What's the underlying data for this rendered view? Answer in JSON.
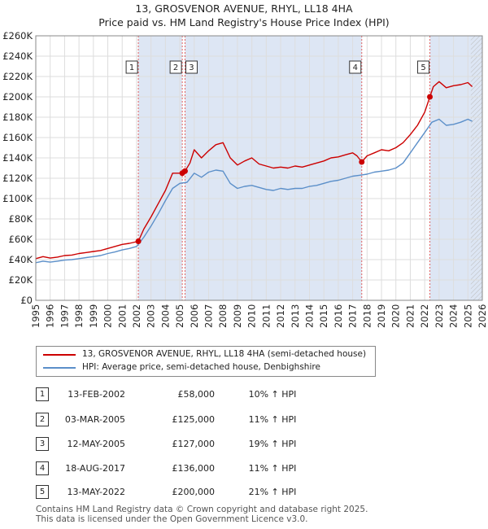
{
  "chart_data": {
    "type": "line",
    "title": "13, GROSVENOR AVENUE, RHYL, LL18 4HA",
    "subtitle": "Price paid vs. HM Land Registry's House Price Index (HPI)",
    "xlabel": "",
    "ylabel": "",
    "xlim": [
      1995,
      2026
    ],
    "ylim": [
      0,
      260000
    ],
    "x_ticks": [
      "1995",
      "1996",
      "1997",
      "1998",
      "1999",
      "2000",
      "2001",
      "2002",
      "2003",
      "2004",
      "2005",
      "2006",
      "2007",
      "2008",
      "2009",
      "2010",
      "2011",
      "2012",
      "2013",
      "2014",
      "2015",
      "2016",
      "2017",
      "2018",
      "2019",
      "2020",
      "2021",
      "2022",
      "2023",
      "2024",
      "2025",
      "2026"
    ],
    "y_ticks": [
      {
        "value": 0,
        "label": "£0"
      },
      {
        "value": 20000,
        "label": "£20K"
      },
      {
        "value": 40000,
        "label": "£40K"
      },
      {
        "value": 60000,
        "label": "£60K"
      },
      {
        "value": 80000,
        "label": "£80K"
      },
      {
        "value": 100000,
        "label": "£100K"
      },
      {
        "value": 120000,
        "label": "£120K"
      },
      {
        "value": 140000,
        "label": "£140K"
      },
      {
        "value": 160000,
        "label": "£160K"
      },
      {
        "value": 180000,
        "label": "£180K"
      },
      {
        "value": 200000,
        "label": "£200K"
      },
      {
        "value": 220000,
        "label": "£220K"
      },
      {
        "value": 240000,
        "label": "£240K"
      },
      {
        "value": 260000,
        "label": "£260K"
      }
    ],
    "grid": true,
    "forecast_start": 2025.2,
    "colors": {
      "property": "#cc0000",
      "hpi": "#5b8fc9",
      "shade": "#dde6f4",
      "vline": "#e06060"
    },
    "series": [
      {
        "name": "13, GROSVENOR AVENUE, RHYL, LL18 4HA (semi-detached house)",
        "key": "property",
        "x": [
          1995.0,
          1995.5,
          1996.0,
          1996.5,
          1997.0,
          1997.5,
          1998.0,
          1998.5,
          1999.0,
          1999.5,
          2000.0,
          2000.5,
          2001.0,
          2001.5,
          2002.12,
          2002.5,
          2003.0,
          2003.5,
          2004.0,
          2004.5,
          2005.0,
          2005.17,
          2005.36,
          2005.7,
          2006.0,
          2006.5,
          2007.0,
          2007.5,
          2008.0,
          2008.5,
          2009.0,
          2009.5,
          2010.0,
          2010.5,
          2011.0,
          2011.5,
          2012.0,
          2012.5,
          2013.0,
          2013.5,
          2014.0,
          2014.5,
          2015.0,
          2015.5,
          2016.0,
          2016.5,
          2017.0,
          2017.3,
          2017.63,
          2018.0,
          2018.5,
          2019.0,
          2019.5,
          2020.0,
          2020.5,
          2021.0,
          2021.5,
          2022.0,
          2022.36,
          2022.6,
          2023.0,
          2023.5,
          2024.0,
          2024.5,
          2025.0,
          2025.3
        ],
        "y": [
          41000,
          43000,
          41500,
          42500,
          44000,
          44500,
          46000,
          47000,
          48000,
          49000,
          51000,
          53000,
          55000,
          56000,
          58000,
          70000,
          82000,
          95000,
          108000,
          125000,
          125000,
          125000,
          127000,
          135000,
          148000,
          140000,
          147000,
          153000,
          155000,
          140000,
          133000,
          137000,
          140000,
          134000,
          132000,
          130000,
          131000,
          130000,
          132000,
          131000,
          133000,
          135000,
          137000,
          140000,
          141000,
          143000,
          145000,
          142000,
          136000,
          142000,
          145000,
          148000,
          147000,
          150000,
          155000,
          163000,
          172000,
          185000,
          200000,
          210000,
          215000,
          209000,
          211000,
          212000,
          214000,
          210000
        ]
      },
      {
        "name": "HPI: Average price, semi-detached house, Denbighshire",
        "key": "hpi",
        "x": [
          1995.0,
          1995.5,
          1996.0,
          1996.5,
          1997.0,
          1997.5,
          1998.0,
          1998.5,
          1999.0,
          1999.5,
          2000.0,
          2000.5,
          2001.0,
          2001.5,
          2002.0,
          2002.5,
          2003.0,
          2003.5,
          2004.0,
          2004.5,
          2005.0,
          2005.5,
          2006.0,
          2006.5,
          2007.0,
          2007.5,
          2008.0,
          2008.5,
          2009.0,
          2009.5,
          2010.0,
          2010.5,
          2011.0,
          2011.5,
          2012.0,
          2012.5,
          2013.0,
          2013.5,
          2014.0,
          2014.5,
          2015.0,
          2015.5,
          2016.0,
          2016.5,
          2017.0,
          2017.5,
          2018.0,
          2018.5,
          2019.0,
          2019.5,
          2020.0,
          2020.5,
          2021.0,
          2021.5,
          2022.0,
          2022.5,
          2023.0,
          2023.5,
          2024.0,
          2024.5,
          2025.0,
          2025.3
        ],
        "y": [
          37000,
          38500,
          37500,
          38500,
          39500,
          40000,
          41000,
          42000,
          43000,
          44000,
          46000,
          47500,
          49500,
          51000,
          53000,
          62000,
          73000,
          85000,
          98000,
          110000,
          115000,
          116000,
          125000,
          121000,
          126000,
          128000,
          127000,
          115000,
          110000,
          112000,
          113000,
          111000,
          109000,
          108000,
          110000,
          109000,
          110000,
          110000,
          112000,
          113000,
          115000,
          117000,
          118000,
          120000,
          122000,
          123000,
          124000,
          126000,
          127000,
          128000,
          130000,
          135000,
          145000,
          155000,
          165000,
          175000,
          178000,
          172000,
          173000,
          175000,
          178000,
          176000
        ]
      }
    ],
    "sales": [
      {
        "label": "1",
        "x": 2002.12,
        "y": 58000
      },
      {
        "label": "2",
        "x": 2005.17,
        "y": 125000
      },
      {
        "label": "3",
        "x": 2005.36,
        "y": 127000
      },
      {
        "label": "4",
        "x": 2017.63,
        "y": 136000
      },
      {
        "label": "5",
        "x": 2022.36,
        "y": 200000
      }
    ]
  },
  "legend": {
    "property_label": "13, GROSVENOR AVENUE, RHYL, LL18 4HA (semi-detached house)",
    "hpi_label": "HPI: Average price, semi-detached house, Denbighshire"
  },
  "transactions": [
    {
      "num": "1",
      "date": "13-FEB-2002",
      "price": "£58,000",
      "hpi": "10% ↑ HPI"
    },
    {
      "num": "2",
      "date": "03-MAR-2005",
      "price": "£125,000",
      "hpi": "11% ↑ HPI"
    },
    {
      "num": "3",
      "date": "12-MAY-2005",
      "price": "£127,000",
      "hpi": "19% ↑ HPI"
    },
    {
      "num": "4",
      "date": "18-AUG-2017",
      "price": "£136,000",
      "hpi": "11% ↑ HPI"
    },
    {
      "num": "5",
      "date": "13-MAY-2022",
      "price": "£200,000",
      "hpi": "21% ↑ HPI"
    }
  ],
  "footer": {
    "line1": "Contains HM Land Registry data © Crown copyright and database right 2025.",
    "line2": "This data is licensed under the Open Government Licence v3.0."
  }
}
